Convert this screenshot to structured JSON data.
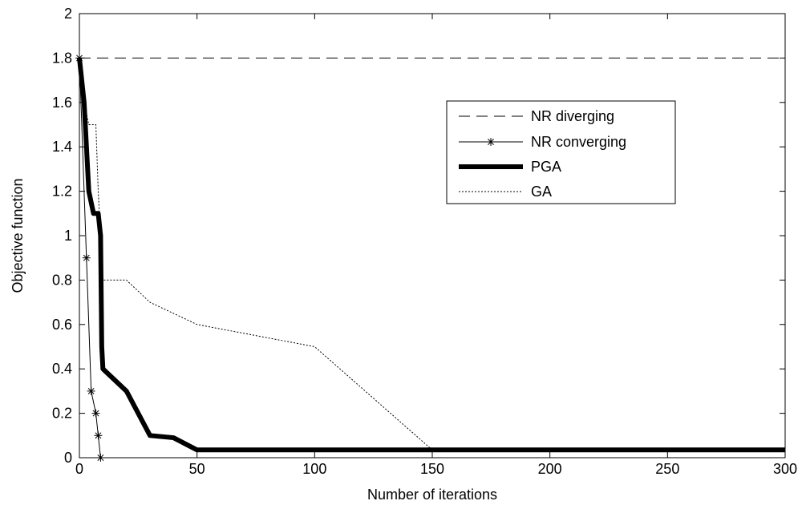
{
  "chart_data": {
    "type": "line",
    "title": "",
    "xlabel": "Number of iterations",
    "ylabel": "Objective function",
    "xlim": [
      0,
      300
    ],
    "ylim": [
      0,
      2
    ],
    "xticks": [
      0,
      50,
      100,
      150,
      200,
      250,
      300
    ],
    "yticks": [
      0,
      0.2,
      0.4,
      0.6,
      0.8,
      1,
      1.2,
      1.4,
      1.6,
      1.8,
      2
    ],
    "xtick_labels": [
      "0",
      "50",
      "100",
      "150",
      "200",
      "250",
      "300"
    ],
    "ytick_labels": [
      "0",
      "0.2",
      "0.4",
      "0.6",
      "0.8",
      "1",
      "1.2",
      "1.4",
      "1.6",
      "1.8",
      "2"
    ],
    "grid": false,
    "legend_position": "upper-right",
    "series": [
      {
        "name": "NR diverging",
        "style": "dashed",
        "color": "#000000",
        "x": [
          0,
          300
        ],
        "y": [
          1.8,
          1.8
        ]
      },
      {
        "name": "NR converging",
        "style": "solid-star",
        "color": "#000000",
        "x": [
          0,
          3,
          5,
          7,
          8,
          9
        ],
        "y": [
          1.8,
          0.9,
          0.3,
          0.2,
          0.1,
          0.0
        ]
      },
      {
        "name": "PGA",
        "style": "thick",
        "color": "#000000",
        "x": [
          0,
          2,
          4,
          6,
          8,
          9,
          9.5,
          10,
          20,
          30,
          40,
          50,
          60,
          100,
          150,
          200,
          250,
          300
        ],
        "y": [
          1.8,
          1.6,
          1.2,
          1.1,
          1.1,
          1.0,
          0.5,
          0.4,
          0.3,
          0.1,
          0.09,
          0.035,
          0.035,
          0.035,
          0.035,
          0.035,
          0.035,
          0.035
        ]
      },
      {
        "name": "GA",
        "style": "dotted",
        "color": "#000000",
        "x": [
          0,
          2,
          4,
          7,
          8,
          10,
          20,
          30,
          50,
          100,
          150
        ],
        "y": [
          1.8,
          1.6,
          1.5,
          1.5,
          1.2,
          0.8,
          0.8,
          0.7,
          0.6,
          0.5,
          0.035
        ]
      }
    ]
  }
}
